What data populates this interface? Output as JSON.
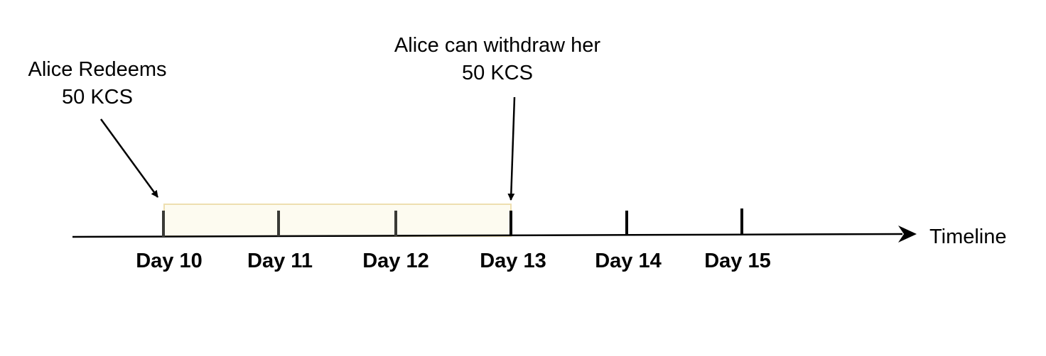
{
  "annotations": {
    "redeem": {
      "line1": "Alice Redeems",
      "line2": "50 KCS"
    },
    "withdraw": {
      "line1": "Alice can withdraw her",
      "line2": "50 KCS"
    }
  },
  "axis": {
    "label": "Timeline"
  },
  "days": [
    {
      "label": "Day 10"
    },
    {
      "label": "Day 11"
    },
    {
      "label": "Day 12"
    },
    {
      "label": "Day 13"
    },
    {
      "label": "Day 14"
    },
    {
      "label": "Day 15"
    }
  ],
  "colors": {
    "lock_fill": "#fdfbf0",
    "lock_stroke": "#eedfb0",
    "axis": "#000000",
    "tick_in_period": "#3a3a36",
    "tick": "#000000"
  }
}
